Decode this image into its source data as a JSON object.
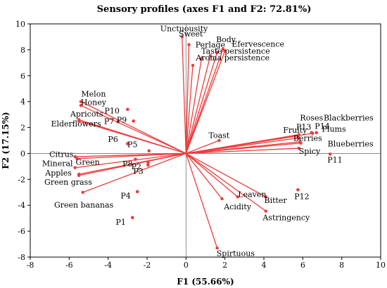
{
  "chart_data": {
    "type": "scatter",
    "title": "Sensory profiles (axes F1 and F2: 72.81%)",
    "xlabel": "F1 (55.66%)",
    "ylabel": "F2 (17.15%)",
    "xlim": [
      -8,
      10
    ],
    "ylim": [
      -8,
      10
    ],
    "x_ticks": [
      -8,
      -6,
      -4,
      -2,
      0,
      2,
      4,
      6,
      8,
      10
    ],
    "y_ticks": [
      -8,
      -6,
      -4,
      -2,
      0,
      2,
      4,
      6,
      8,
      10
    ],
    "grid": false,
    "colors": {
      "marks": "#ef3b3b",
      "axes": "#000000",
      "zero_lines": "#777777"
    },
    "variables": [
      {
        "label": "Unctuousity",
        "x": -0.2,
        "y": 9.0
      },
      {
        "label": "Sweet",
        "x": 0.15,
        "y": 8.4
      },
      {
        "label": "Body",
        "x": 1.9,
        "y": 8.05
      },
      {
        "label": "Perlage",
        "x": 1.6,
        "y": 7.8
      },
      {
        "label": "Efervescence",
        "x": 2.0,
        "y": 7.9
      },
      {
        "label": "Taste persistence",
        "x": 1.25,
        "y": 7.55
      },
      {
        "label": "Aroma persistence",
        "x": 0.8,
        "y": 7.35
      },
      {
        "label": "",
        "x": 0.35,
        "y": 6.8
      },
      {
        "label": "Melon",
        "x": -5.4,
        "y": 4.0
      },
      {
        "label": "Honey",
        "x": -5.4,
        "y": 3.7
      },
      {
        "label": "Apricots",
        "x": -5.5,
        "y": 2.6
      },
      {
        "label": "Elderflowers",
        "x": -5.5,
        "y": 2.5
      },
      {
        "label": "Citrus",
        "x": -5.7,
        "y": -0.25
      },
      {
        "label": "Green",
        "x": -5.6,
        "y": -0.4
      },
      {
        "label": "Mineral",
        "x": -5.7,
        "y": -1.1
      },
      {
        "label": "Apples",
        "x": -5.5,
        "y": -1.6
      },
      {
        "label": "Green grass",
        "x": -5.5,
        "y": -1.7
      },
      {
        "label": "Green bananas",
        "x": -5.3,
        "y": -3.0
      },
      {
        "label": "Roses",
        "x": 5.8,
        "y": 1.45
      },
      {
        "label": "Blackberries",
        "x": 6.5,
        "y": 1.55
      },
      {
        "label": "Fruity",
        "x": 5.75,
        "y": 1.35
      },
      {
        "label": "Berries",
        "x": 5.8,
        "y": 1.2
      },
      {
        "label": "Plums",
        "x": 5.85,
        "y": 0.9
      },
      {
        "label": "Blueberries",
        "x": 5.9,
        "y": 0.8
      },
      {
        "label": "Spicy",
        "x": 5.8,
        "y": 0.4
      },
      {
        "label": "Toast",
        "x": 1.7,
        "y": 1.0
      },
      {
        "label": "Leaven",
        "x": 2.65,
        "y": -3.35
      },
      {
        "label": "Bitter",
        "x": 4.1,
        "y": -3.35
      },
      {
        "label": "Acidity",
        "x": 1.85,
        "y": -3.5
      },
      {
        "label": "Astringency",
        "x": 4.1,
        "y": -4.45
      },
      {
        "label": "Spirtuous",
        "x": 1.6,
        "y": -7.3
      }
    ],
    "observations": [
      {
        "label": "P1",
        "x": -2.75,
        "y": -4.95
      },
      {
        "label": "P2",
        "x": -1.95,
        "y": -0.9
      },
      {
        "label": "P3",
        "x": -1.95,
        "y": -0.7
      },
      {
        "label": "P4",
        "x": -2.5,
        "y": -2.95
      },
      {
        "label": "P5",
        "x": -1.9,
        "y": 0.2
      },
      {
        "label": "P6",
        "x": -3.0,
        "y": 0.75
      },
      {
        "label": "P7",
        "x": -2.7,
        "y": 2.5
      },
      {
        "label": "P8",
        "x": -2.6,
        "y": -0.45
      },
      {
        "label": "P9",
        "x": -3.0,
        "y": 3.4
      },
      {
        "label": "P10",
        "x": -3.5,
        "y": 2.45
      },
      {
        "label": "P11",
        "x": 7.4,
        "y": -0.05
      },
      {
        "label": "P12",
        "x": 5.75,
        "y": -2.8
      },
      {
        "label": "P13",
        "x": 6.45,
        "y": 1.6
      },
      {
        "label": "P14",
        "x": 6.7,
        "y": 1.6
      }
    ],
    "label_positions": {
      "Unctuousity": [
        -0.1,
        9.65
      ],
      "Sweet": [
        0.25,
        9.25
      ],
      "Body": [
        2.05,
        8.8
      ],
      "Perlage": [
        1.25,
        8.4
      ],
      "Efervescence": [
        3.7,
        8.45
      ],
      "Taste persistence": [
        2.55,
        7.9
      ],
      "Aroma persistence": [
        2.4,
        7.4
      ],
      "Melon": [
        -4.75,
        4.6
      ],
      "Honey": [
        -4.75,
        3.95
      ],
      "Apricots": [
        -5.1,
        3.05
      ],
      "Elderflowers": [
        -5.65,
        2.3
      ],
      "Citrus": [
        -6.4,
        -0.05
      ],
      "Green": [
        -5.05,
        -0.65
      ],
      "Mineral": [
        -6.6,
        -0.75
      ],
      "Apples": [
        -6.55,
        -1.5
      ],
      "Green grass": [
        -6.05,
        -2.2
      ],
      "Green bananas": [
        -5.25,
        -3.95
      ],
      "Roses": [
        6.45,
        2.75
      ],
      "Blackberries": [
        8.35,
        2.75
      ],
      "Fruity": [
        5.6,
        1.8
      ],
      "Berries": [
        6.25,
        1.2
      ],
      "Plums": [
        7.6,
        1.9
      ],
      "Blueberries": [
        8.45,
        0.75
      ],
      "Spicy": [
        6.35,
        0.2
      ],
      "Toast": [
        1.7,
        1.4
      ],
      "Leaven": [
        3.4,
        -3.15
      ],
      "Bitter": [
        4.6,
        -3.6
      ],
      "Acidity": [
        2.65,
        -4.1
      ],
      "Astringency": [
        5.15,
        -4.95
      ],
      "Spirtuous": [
        2.55,
        -7.7
      ],
      "P1": [
        -3.35,
        -5.3
      ],
      "P2": [
        -2.55,
        -1.0
      ],
      "P3": [
        -2.45,
        -1.35
      ],
      "P4": [
        -3.1,
        -3.25
      ],
      "P5": [
        -2.75,
        0.7
      ],
      "P6": [
        -3.75,
        1.1
      ],
      "P7": [
        -3.95,
        2.5
      ],
      "P8": [
        -3.0,
        -0.8
      ],
      "P9": [
        -3.3,
        2.6
      ],
      "P10": [
        -3.8,
        3.3
      ],
      "P11": [
        7.65,
        -0.5
      ],
      "P12": [
        5.95,
        -3.3
      ],
      "P13": [
        6.05,
        2.05
      ],
      "P14": [
        7.0,
        2.1
      ]
    }
  }
}
